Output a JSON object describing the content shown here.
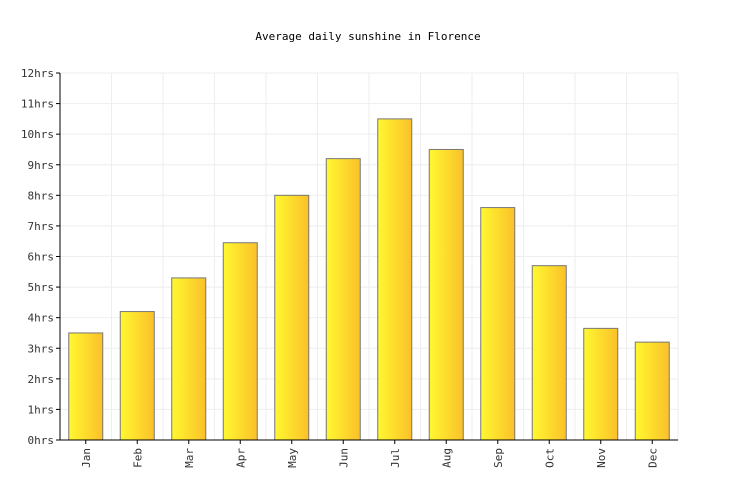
{
  "chart_data": {
    "type": "bar",
    "title": "Average daily sunshine in Florence",
    "categories": [
      "Jan",
      "Feb",
      "Mar",
      "Apr",
      "May",
      "Jun",
      "Jul",
      "Aug",
      "Sep",
      "Oct",
      "Nov",
      "Dec"
    ],
    "values": [
      3.5,
      4.2,
      5.3,
      6.45,
      8.0,
      9.2,
      10.5,
      9.5,
      7.6,
      5.7,
      3.65,
      3.2
    ],
    "ylim": [
      0,
      12
    ],
    "yticks": [
      0,
      1,
      2,
      3,
      4,
      5,
      6,
      7,
      8,
      9,
      10,
      11,
      12
    ],
    "ytick_labels": [
      "0hrs",
      "1hrs",
      "2hrs",
      "3hrs",
      "4hrs",
      "5hrs",
      "6hrs",
      "7hrs",
      "8hrs",
      "9hrs",
      "10hrs",
      "11hrs",
      "12hrs"
    ],
    "grid": true,
    "colors": {
      "bar_light": "#fff830",
      "bar_dark": "#fbc02a",
      "bar_stroke": "#777777",
      "grid": "#eeeeee",
      "axis": "#000000"
    }
  }
}
